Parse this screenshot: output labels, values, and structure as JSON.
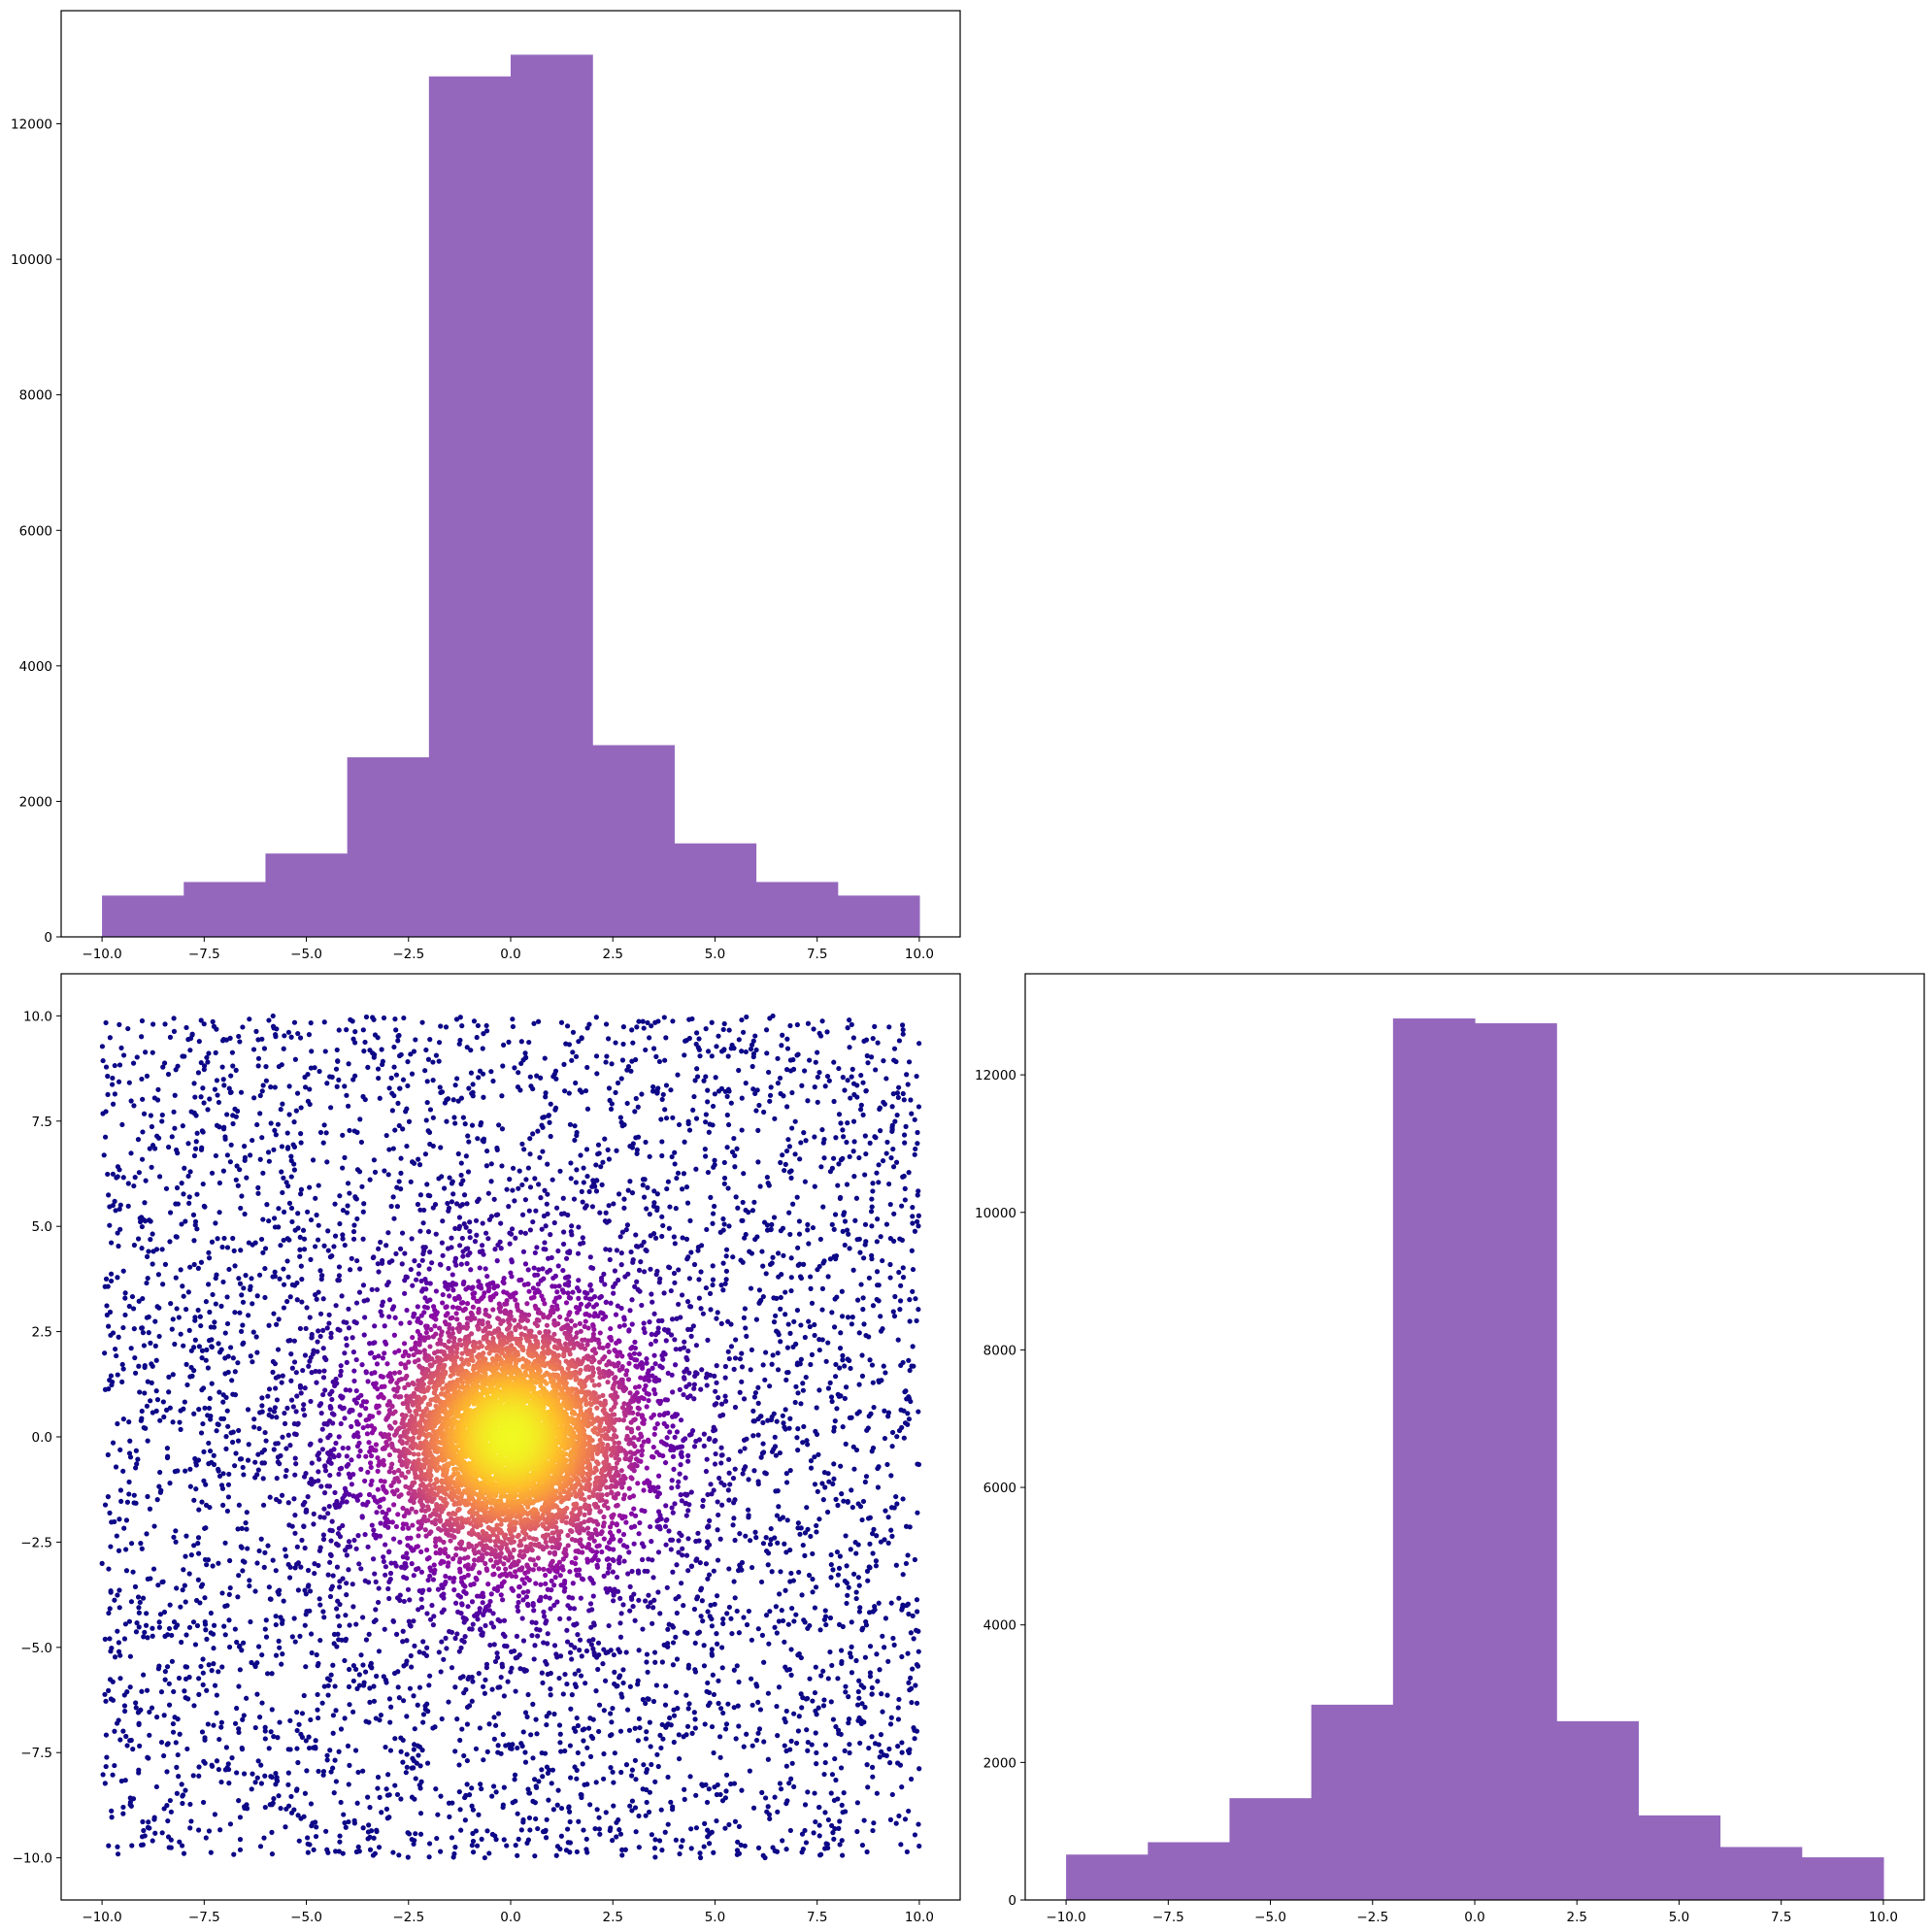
{
  "chart_data": [
    {
      "type": "bar",
      "panel": "top-left",
      "color": "#9467bd",
      "bin_edges": [
        -10,
        -8,
        -6,
        -4,
        -2,
        0,
        2,
        4,
        6,
        8,
        10
      ],
      "values": [
        610,
        810,
        1230,
        2650,
        12700,
        13020,
        2830,
        1380,
        810,
        610
      ],
      "xlim": [
        -11,
        11
      ],
      "ylim": [
        0,
        13670
      ],
      "xticks": [
        -10.0,
        -7.5,
        -5.0,
        -2.5,
        0.0,
        2.5,
        5.0,
        7.5,
        10.0
      ],
      "xtick_labels": [
        "−10.0",
        "−7.5",
        "−5.0",
        "−2.5",
        "0.0",
        "2.5",
        "5.0",
        "7.5",
        "10.0"
      ],
      "yticks": [
        0,
        2000,
        4000,
        6000,
        8000,
        10000,
        12000
      ],
      "ytick_labels": [
        "0",
        "2000",
        "4000",
        "6000",
        "8000",
        "10000",
        "12000"
      ],
      "grid": false
    },
    {
      "type": "scatter",
      "panel": "bottom-left",
      "colormap": "plasma",
      "color_by": "density (radial distance from origin)",
      "colormap_stops": [
        "#0d0887",
        "#5302a3",
        "#8b0aa5",
        "#b83289",
        "#db5c68",
        "#f48849",
        "#febd2a",
        "#f0f921"
      ],
      "x_range": [
        -10,
        10
      ],
      "y_range": [
        -10,
        10
      ],
      "point_count_shown": 9000,
      "distribution": "Gaussian core sigma≈1.8 centered at (0,0) plus uniform background over [-10,10]×[-10,10]",
      "xlim": [
        -11,
        11
      ],
      "ylim": [
        -11,
        11
      ],
      "xticks": [
        -10.0,
        -7.5,
        -5.0,
        -2.5,
        0.0,
        2.5,
        5.0,
        7.5,
        10.0
      ],
      "xtick_labels": [
        "−10.0",
        "−7.5",
        "−5.0",
        "−2.5",
        "0.0",
        "2.5",
        "5.0",
        "7.5",
        "10.0"
      ],
      "yticks": [
        -10.0,
        -7.5,
        -5.0,
        -2.5,
        0.0,
        2.5,
        5.0,
        7.5,
        10.0
      ],
      "ytick_labels": [
        "−10.0",
        "−7.5",
        "−5.0",
        "−2.5",
        "0.0",
        "2.5",
        "5.0",
        "7.5",
        "10.0"
      ],
      "grid": false
    },
    {
      "type": "bar",
      "panel": "bottom-right",
      "color": "#9467bd",
      "bin_edges": [
        -10,
        -8,
        -6,
        -4,
        -2,
        0,
        2,
        4,
        6,
        8,
        10
      ],
      "values": [
        660,
        840,
        1480,
        2840,
        12820,
        12750,
        2600,
        1230,
        770,
        620
      ],
      "xlim": [
        -11,
        11
      ],
      "ylim": [
        0,
        13470
      ],
      "xticks": [
        -10.0,
        -7.5,
        -5.0,
        -2.5,
        0.0,
        2.5,
        5.0,
        7.5,
        10.0
      ],
      "xtick_labels": [
        "−10.0",
        "−7.5",
        "−5.0",
        "−2.5",
        "0.0",
        "2.5",
        "5.0",
        "7.5",
        "10.0"
      ],
      "yticks": [
        0,
        2000,
        4000,
        6000,
        8000,
        10000,
        12000
      ],
      "ytick_labels": [
        "0",
        "2000",
        "4000",
        "6000",
        "8000",
        "10000",
        "12000"
      ],
      "grid": false
    }
  ]
}
